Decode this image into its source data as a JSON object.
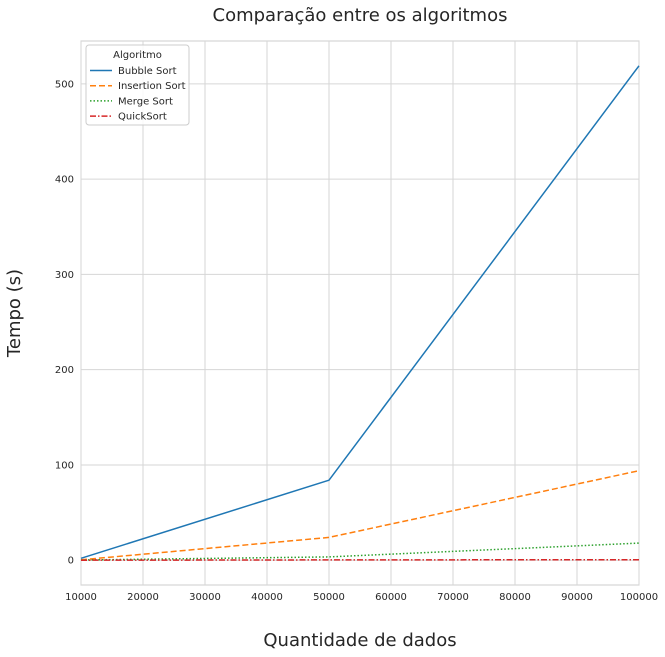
{
  "chart_data": {
    "type": "line",
    "title": "Comparação entre os algoritmos",
    "xlabel": "Quantidade de dados",
    "ylabel": "Tempo (s)",
    "x": [
      10000,
      50000,
      100000
    ],
    "xlim": [
      10000,
      100000
    ],
    "ylim": [
      -26,
      545
    ],
    "xticks": [
      10000,
      20000,
      30000,
      40000,
      50000,
      60000,
      70000,
      80000,
      90000,
      100000
    ],
    "yticks": [
      0,
      100,
      200,
      300,
      400,
      500
    ],
    "grid": true,
    "legend": {
      "title": "Algoritmo",
      "position": "top-left"
    },
    "series": [
      {
        "name": "Bubble Sort",
        "values": [
          2.0,
          84.0,
          519.0
        ],
        "color": "#1f77b4",
        "dash": "solid"
      },
      {
        "name": "Insertion Sort",
        "values": [
          0.5,
          24.0,
          94.0
        ],
        "color": "#ff7f0e",
        "dash": "dashed"
      },
      {
        "name": "Merge Sort",
        "values": [
          0.2,
          3.5,
          18.0
        ],
        "color": "#2ca02c",
        "dash": "dotted"
      },
      {
        "name": "QuickSort",
        "values": [
          0.05,
          0.3,
          0.6
        ],
        "color": "#d62728",
        "dash": "dashdot"
      }
    ]
  }
}
